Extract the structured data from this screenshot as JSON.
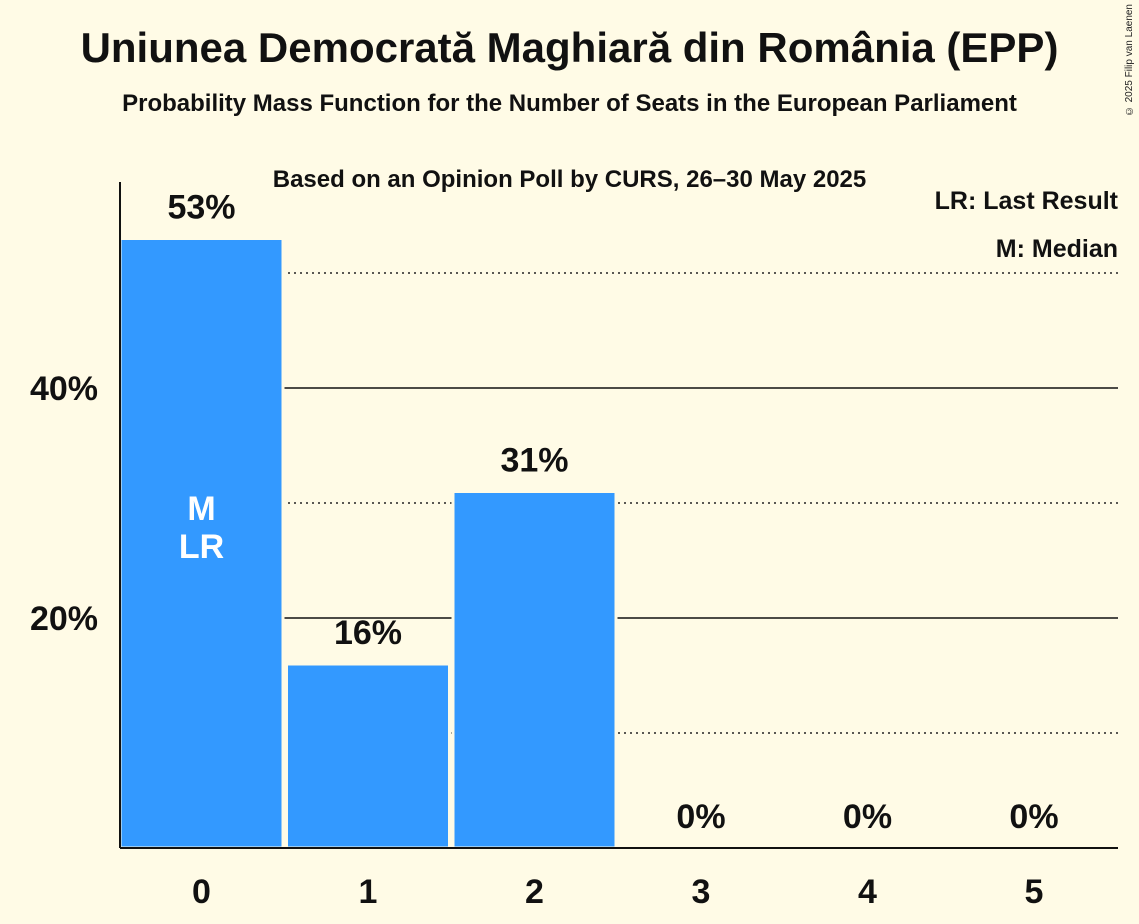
{
  "title": "Uniunea Democrată Maghiară din România (EPP)",
  "subtitle": "Probability Mass Function for the Number of Seats in the European Parliament",
  "source": "Based on an Opinion Poll by CURS, 26–30 May 2025",
  "copyright": "© 2025 Filip van Laenen",
  "legend": {
    "lr": "LR: Last Result",
    "median": "M: Median"
  },
  "colors": {
    "bar": "#3399ff",
    "background": "#fffbe6"
  },
  "chart_data": {
    "type": "bar",
    "categories": [
      "0",
      "1",
      "2",
      "3",
      "4",
      "5"
    ],
    "values": [
      53,
      16,
      31,
      0,
      0,
      0
    ],
    "value_labels": [
      "53%",
      "16%",
      "31%",
      "0%",
      "0%",
      "0%"
    ],
    "ylim": [
      0,
      58
    ],
    "yticks": [
      {
        "value": 20,
        "label": "20%"
      },
      {
        "value": 40,
        "label": "40%"
      }
    ],
    "minor_gridlines": [
      10,
      30,
      50
    ],
    "bar_markers": [
      {
        "category": "0",
        "lines": [
          "M",
          "LR"
        ]
      }
    ],
    "legend_position": "top-right"
  }
}
